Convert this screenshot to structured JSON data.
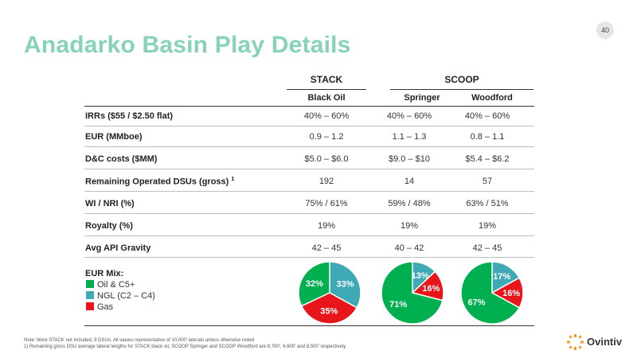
{
  "page_number": "40",
  "title": "Anadarko Basin Play Details",
  "groups": [
    "STACK",
    "SCOOP"
  ],
  "columns": [
    "Black Oil",
    "Springer",
    "Woodford"
  ],
  "rows": [
    {
      "label": "IRRs ($55 / $2.50 flat)",
      "sup": "",
      "values": [
        "40% – 60%",
        "40% – 60%",
        "40% – 60%"
      ]
    },
    {
      "label": "EUR (MMboe)",
      "sup": "",
      "values": [
        "0.9 – 1.2",
        "1.1 – 1.3",
        "0.8 – 1.1"
      ]
    },
    {
      "label": "D&C costs ($MM)",
      "sup": "",
      "values": [
        "$5.0 – $6.0",
        "$9.0 – $10",
        "$5.4 – $6.2"
      ]
    },
    {
      "label": "Remaining Operated DSUs (gross)",
      "sup": "1",
      "values": [
        "192",
        "14",
        "57"
      ]
    },
    {
      "label": "WI / NRI (%)",
      "sup": "",
      "values": [
        "75% / 61%",
        "59% / 48%",
        "63% / 51%"
      ]
    },
    {
      "label": "Royalty (%)",
      "sup": "",
      "values": [
        "19%",
        "19%",
        "19%"
      ]
    },
    {
      "label": "Avg API Gravity",
      "sup": "",
      "values": [
        "42 – 45",
        "40 – 42",
        "42 – 45"
      ]
    }
  ],
  "eur_mix": {
    "title": "EUR Mix:",
    "legend": [
      {
        "label": "Oil & C5+",
        "color": "#00b050"
      },
      {
        "label": "NGL (C2 – C4)",
        "color": "#3fa9b5"
      },
      {
        "label": "Gas",
        "color": "#e8151b"
      }
    ]
  },
  "chart_data": [
    {
      "type": "pie",
      "categories": [
        "Oil & C5+",
        "NGL (C2 – C4)",
        "Gas"
      ],
      "values": [
        32,
        33,
        35
      ],
      "labels": [
        "32%",
        "33%",
        "35%"
      ]
    },
    {
      "type": "pie",
      "categories": [
        "Oil & C5+",
        "NGL (C2 – C4)",
        "Gas"
      ],
      "values": [
        71,
        13,
        16
      ],
      "labels": [
        "71%",
        "13%",
        "16%"
      ]
    },
    {
      "type": "pie",
      "categories": [
        "Oil & C5+",
        "NGL (C2 – C4)",
        "Gas"
      ],
      "values": [
        67,
        17,
        16
      ],
      "labels": [
        "67%",
        "17%",
        "16%"
      ]
    }
  ],
  "notes": [
    "Note: West STACK not included, 9 DSUs. All values representative of 10,000' laterals unless otherwise noted",
    "1) Remaining gross DSU average lateral lengths for STACK black oil, SCOOP Springer and SCOOP Woodford are 8,700', 6,600' and 8,500' respectively"
  ],
  "logo_text": "Ovintiv",
  "colors": {
    "title": "#86d3b5",
    "oil": "#00b050",
    "ngl": "#3fa9b5",
    "gas": "#e8151b"
  }
}
